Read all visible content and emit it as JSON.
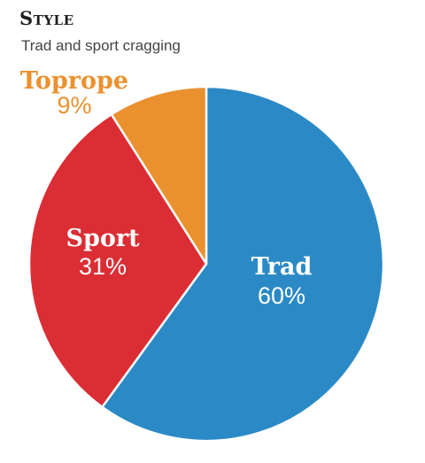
{
  "chart_data": {
    "type": "pie",
    "title": "Style",
    "subtitle": "Trad and sport cragging",
    "slices": [
      {
        "label": "Trad",
        "value": 60,
        "display": "60%",
        "color": "#2b8ac6",
        "label_color": "#ffffff"
      },
      {
        "label": "Sport",
        "value": 31,
        "display": "31%",
        "color": "#db2d34",
        "label_color": "#ffffff"
      },
      {
        "label": "Toprope",
        "value": 9,
        "display": "9%",
        "color": "#ea912f",
        "label_color": "#ea912f"
      }
    ]
  }
}
